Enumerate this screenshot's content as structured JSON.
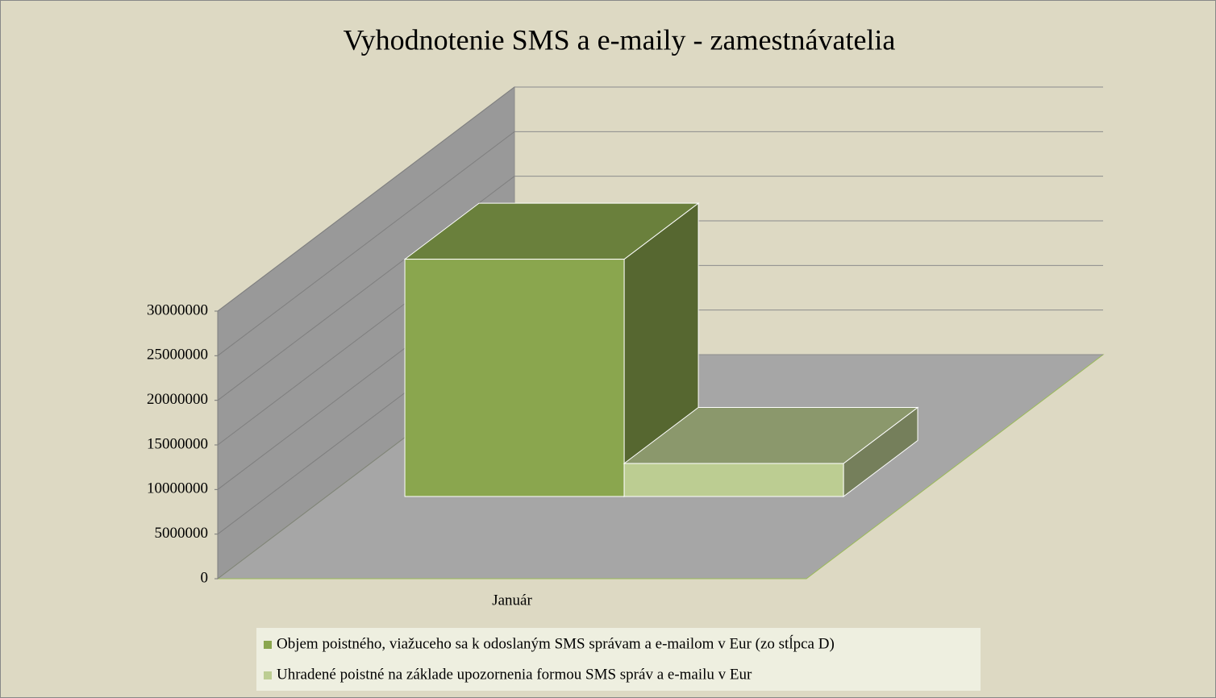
{
  "chart_data": {
    "type": "bar3d",
    "title": "Vyhodnotenie SMS a e-maily - zamestnávatelia",
    "categories": [
      "Január"
    ],
    "series": [
      {
        "name": "Objem poistného, viažuceho sa k odoslaným SMS správam a e-mailom v Eur (zo stĺpca D)",
        "color": "#8aa64e",
        "values": [
          26600000
        ]
      },
      {
        "name": "Uhradené poistné na základe upozornenia formou SMS správ a e-mailu v Eur",
        "color": "#bccd92",
        "values": [
          3700000
        ]
      }
    ],
    "ylim": [
      0,
      30000000
    ],
    "yticks": [
      0,
      5000000,
      10000000,
      15000000,
      20000000,
      25000000,
      30000000
    ],
    "grid": true
  }
}
